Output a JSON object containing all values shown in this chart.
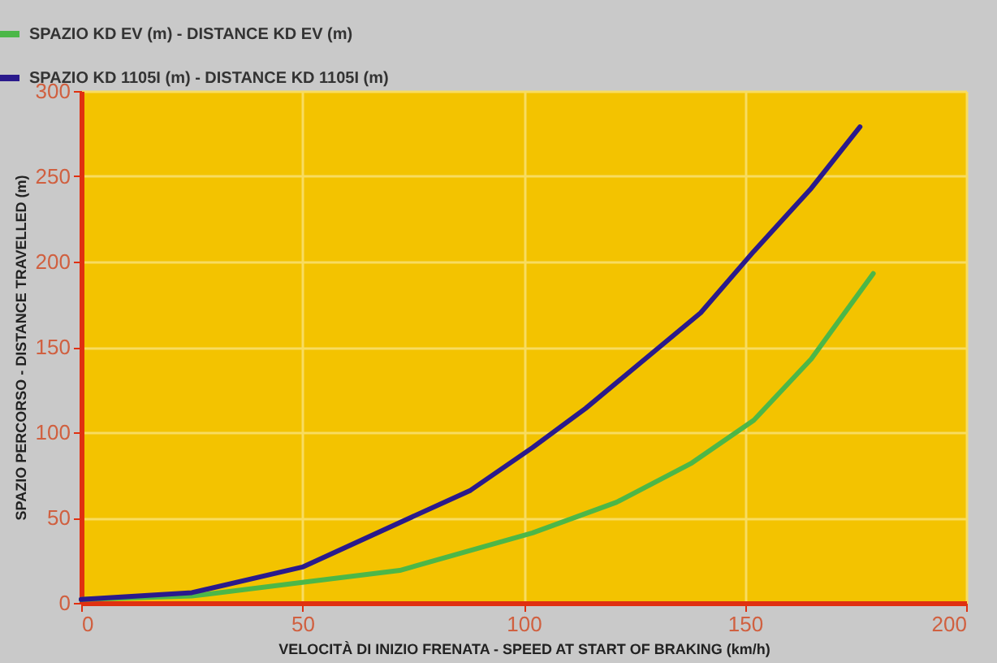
{
  "chart_data": {
    "type": "line",
    "xlabel": "VELOCITÀ DI INIZIO FRENATA - SPEED AT START OF BRAKING (km/h)",
    "ylabel": "SPAZIO PERCORSO - DISTANCE TRAVELLED (m)",
    "xlim": [
      0,
      200
    ],
    "xticks": [
      0,
      50,
      100,
      150,
      200
    ],
    "ylim": [
      0,
      300
    ],
    "yticks": [
      0,
      50,
      100,
      150,
      200,
      250,
      300
    ],
    "grid": true,
    "legend": "top left",
    "line_style": "solid",
    "series": [
      {
        "name": "SPAZIO KD EV (m) - DISTANCE KD EV (m)",
        "color": "#4cb748",
        "x": [
          0,
          25,
          50,
          72,
          102,
          121,
          138,
          152,
          165,
          179
        ],
        "values": [
          2,
          4,
          12,
          19,
          41,
          59,
          82,
          107,
          143,
          193
        ]
      },
      {
        "name": "SPAZIO KD 1105I (m) - DISTANCE KD 1105I (m)",
        "color": "#2a1a8c",
        "x": [
          0,
          25,
          50,
          88,
          102,
          114,
          140,
          152,
          165,
          176
        ],
        "values": [
          2,
          6,
          21,
          66,
          91,
          114,
          170,
          206,
          243,
          279
        ]
      }
    ]
  }
}
